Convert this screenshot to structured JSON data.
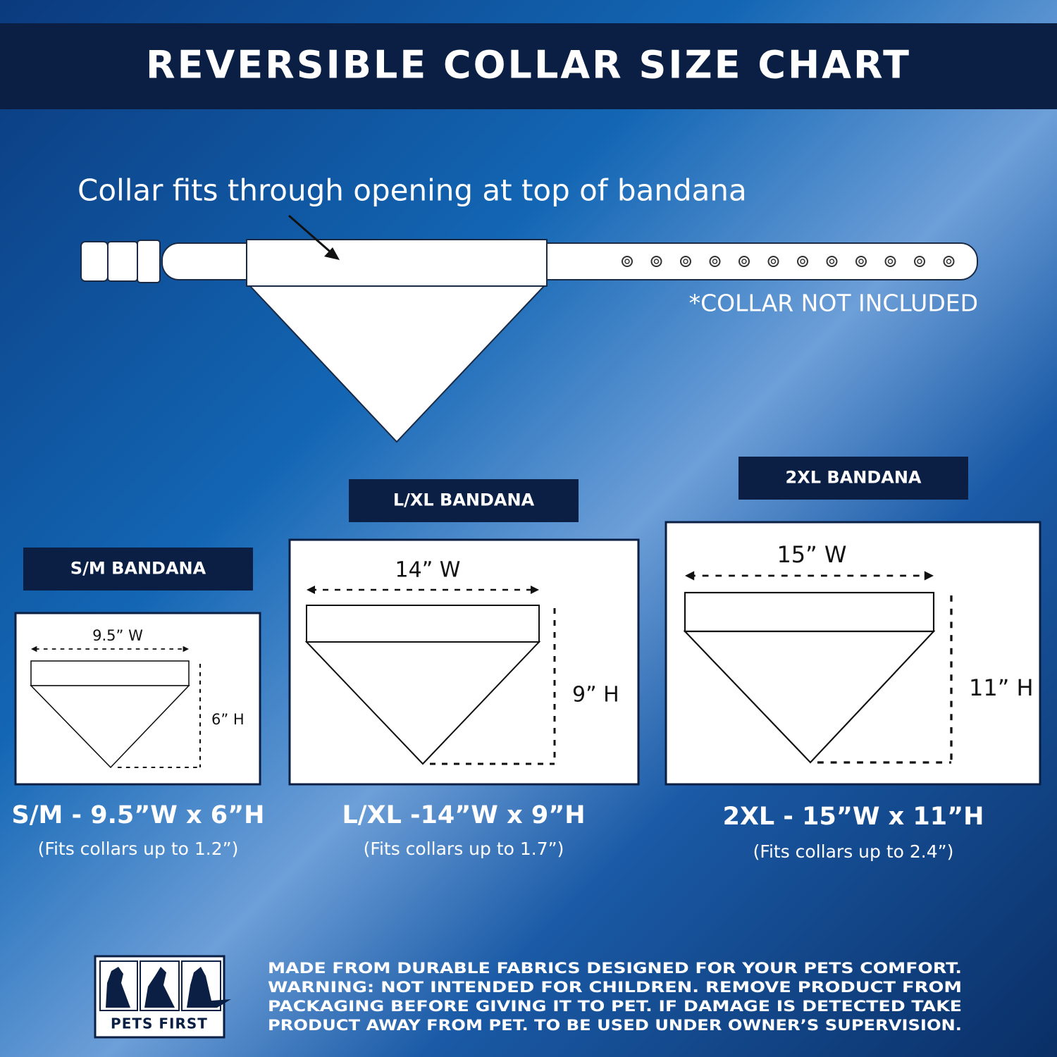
{
  "title": "REVERSIBLE COLLAR SIZE CHART",
  "diagram": {
    "caption": "Collar fits through opening at top of bandana",
    "note": "*COLLAR NOT INCLUDED"
  },
  "sizes": [
    {
      "label": "S/M BANDANA",
      "width": "9.5” W",
      "height": "6” H",
      "dimensions": "S/M - 9.5”W x 6”H",
      "fits": "(Fits collars up to 1.2”)"
    },
    {
      "label": "L/XL BANDANA",
      "width": "14” W",
      "height": "9” H",
      "dimensions": "L/XL -14”W x 9”H",
      "fits": "(Fits collars up to 1.7”)"
    },
    {
      "label": "2XL BANDANA",
      "width": "15” W",
      "height": "11” H",
      "dimensions": "2XL - 15”W x 11”H",
      "fits": "(Fits collars up to 2.4”)"
    }
  ],
  "logo": "PETS FIRST",
  "footer": [
    "MADE FROM DURABLE FABRICS DESIGNED FOR YOUR PETS COMFORT.",
    "WARNING:  NOT  INTENDED  FOR  CHILDREN. REMOVE PRODUCT FROM",
    "PACKAGING BEFORE GIVING IT TO PET.  IF DAMAGE IS DETECTED TAKE",
    "PRODUCT AWAY FROM PET. TO BE USED UNDER OWNER’S SUPERVISION."
  ]
}
